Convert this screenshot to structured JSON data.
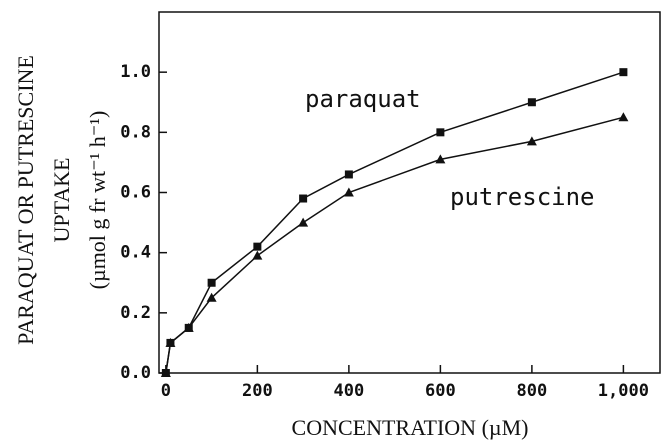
{
  "chart_data": {
    "type": "line",
    "xlabel": "CONCENTRATION (µM)",
    "ylabel": [
      "PARAQUAT OR PUTRESCINE",
      "UPTAKE",
      "(µmol  g fr wt⁻¹ h⁻¹)"
    ],
    "xlim": [
      -15,
      1080
    ],
    "ylim": [
      0,
      1.2
    ],
    "xticks": [
      0,
      200,
      400,
      600,
      800,
      {
        "value": 1000,
        "label": "1,000"
      }
    ],
    "yticks": [
      {
        "value": 0,
        "label": "0.0"
      },
      0.2,
      0.4,
      0.6,
      0.8,
      {
        "value": 1,
        "label": "1.0"
      }
    ],
    "series": [
      {
        "name": "paraquat",
        "color": "#111",
        "marker": "square",
        "x": [
          0,
          10,
          50,
          100,
          200,
          300,
          400,
          600,
          800,
          1000
        ],
        "values": [
          0,
          0.1,
          0.15,
          0.3,
          0.42,
          0.58,
          0.66,
          0.8,
          0.9,
          1.0
        ]
      },
      {
        "name": "putrescine",
        "color": "#111",
        "marker": "triangle",
        "x": [
          0,
          10,
          50,
          100,
          200,
          300,
          400,
          600,
          800,
          1000
        ],
        "values": [
          0,
          0.1,
          0.15,
          0.25,
          0.39,
          0.5,
          0.6,
          0.71,
          0.77,
          0.85
        ]
      }
    ]
  }
}
